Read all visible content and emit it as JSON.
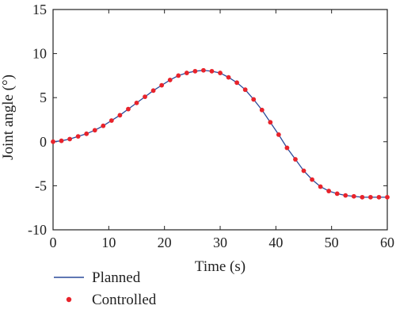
{
  "chart_data": {
    "type": "line",
    "xlabel": "Time (s)",
    "ylabel": "Joint angle (°)",
    "xlim": [
      0,
      60
    ],
    "ylim": [
      -10,
      15
    ],
    "xticks": [
      0,
      10,
      20,
      30,
      40,
      50,
      60
    ],
    "yticks": [
      -10,
      -5,
      0,
      5,
      10,
      15
    ],
    "grid": false,
    "legend_position": "bottom-left",
    "colors": {
      "planned": "#2a4a9a",
      "controlled": "#e8232b",
      "axis": "#222222"
    },
    "series": [
      {
        "name": "Planned",
        "style": "line",
        "x": [
          0,
          1.5,
          3,
          4.5,
          6,
          7.5,
          9,
          10.5,
          12,
          13.5,
          15,
          16.5,
          18,
          19.5,
          21,
          22.5,
          24,
          25.5,
          27,
          28.5,
          30,
          31.5,
          33,
          34.5,
          36,
          37.5,
          39,
          40.5,
          42,
          43.5,
          45,
          46.5,
          48,
          49.5,
          51,
          52.5,
          54,
          55.5,
          57,
          58.5,
          60
        ],
        "y": [
          0.0,
          0.1,
          0.3,
          0.6,
          0.9,
          1.3,
          1.8,
          2.4,
          3.0,
          3.7,
          4.4,
          5.1,
          5.8,
          6.4,
          7.0,
          7.5,
          7.8,
          8.0,
          8.1,
          8.0,
          7.8,
          7.3,
          6.7,
          5.9,
          4.8,
          3.6,
          2.2,
          0.8,
          -0.7,
          -2.0,
          -3.3,
          -4.3,
          -5.1,
          -5.6,
          -5.9,
          -6.1,
          -6.2,
          -6.3,
          -6.3,
          -6.3,
          -6.3
        ]
      },
      {
        "name": "Controlled",
        "style": "markers",
        "x": [
          0,
          1.5,
          3,
          4.5,
          6,
          7.5,
          9,
          10.5,
          12,
          13.5,
          15,
          16.5,
          18,
          19.5,
          21,
          22.5,
          24,
          25.5,
          27,
          28.5,
          30,
          31.5,
          33,
          34.5,
          36,
          37.5,
          39,
          40.5,
          42,
          43.5,
          45,
          46.5,
          48,
          49.5,
          51,
          52.5,
          54,
          55.5,
          57,
          58.5,
          60
        ],
        "y": [
          0.0,
          0.1,
          0.3,
          0.6,
          0.9,
          1.3,
          1.8,
          2.4,
          3.0,
          3.7,
          4.4,
          5.1,
          5.8,
          6.4,
          7.0,
          7.5,
          7.8,
          8.0,
          8.1,
          8.0,
          7.8,
          7.3,
          6.7,
          5.9,
          4.8,
          3.6,
          2.2,
          0.8,
          -0.7,
          -2.0,
          -3.3,
          -4.3,
          -5.1,
          -5.6,
          -5.9,
          -6.1,
          -6.2,
          -6.3,
          -6.3,
          -6.3,
          -6.3
        ]
      }
    ]
  }
}
